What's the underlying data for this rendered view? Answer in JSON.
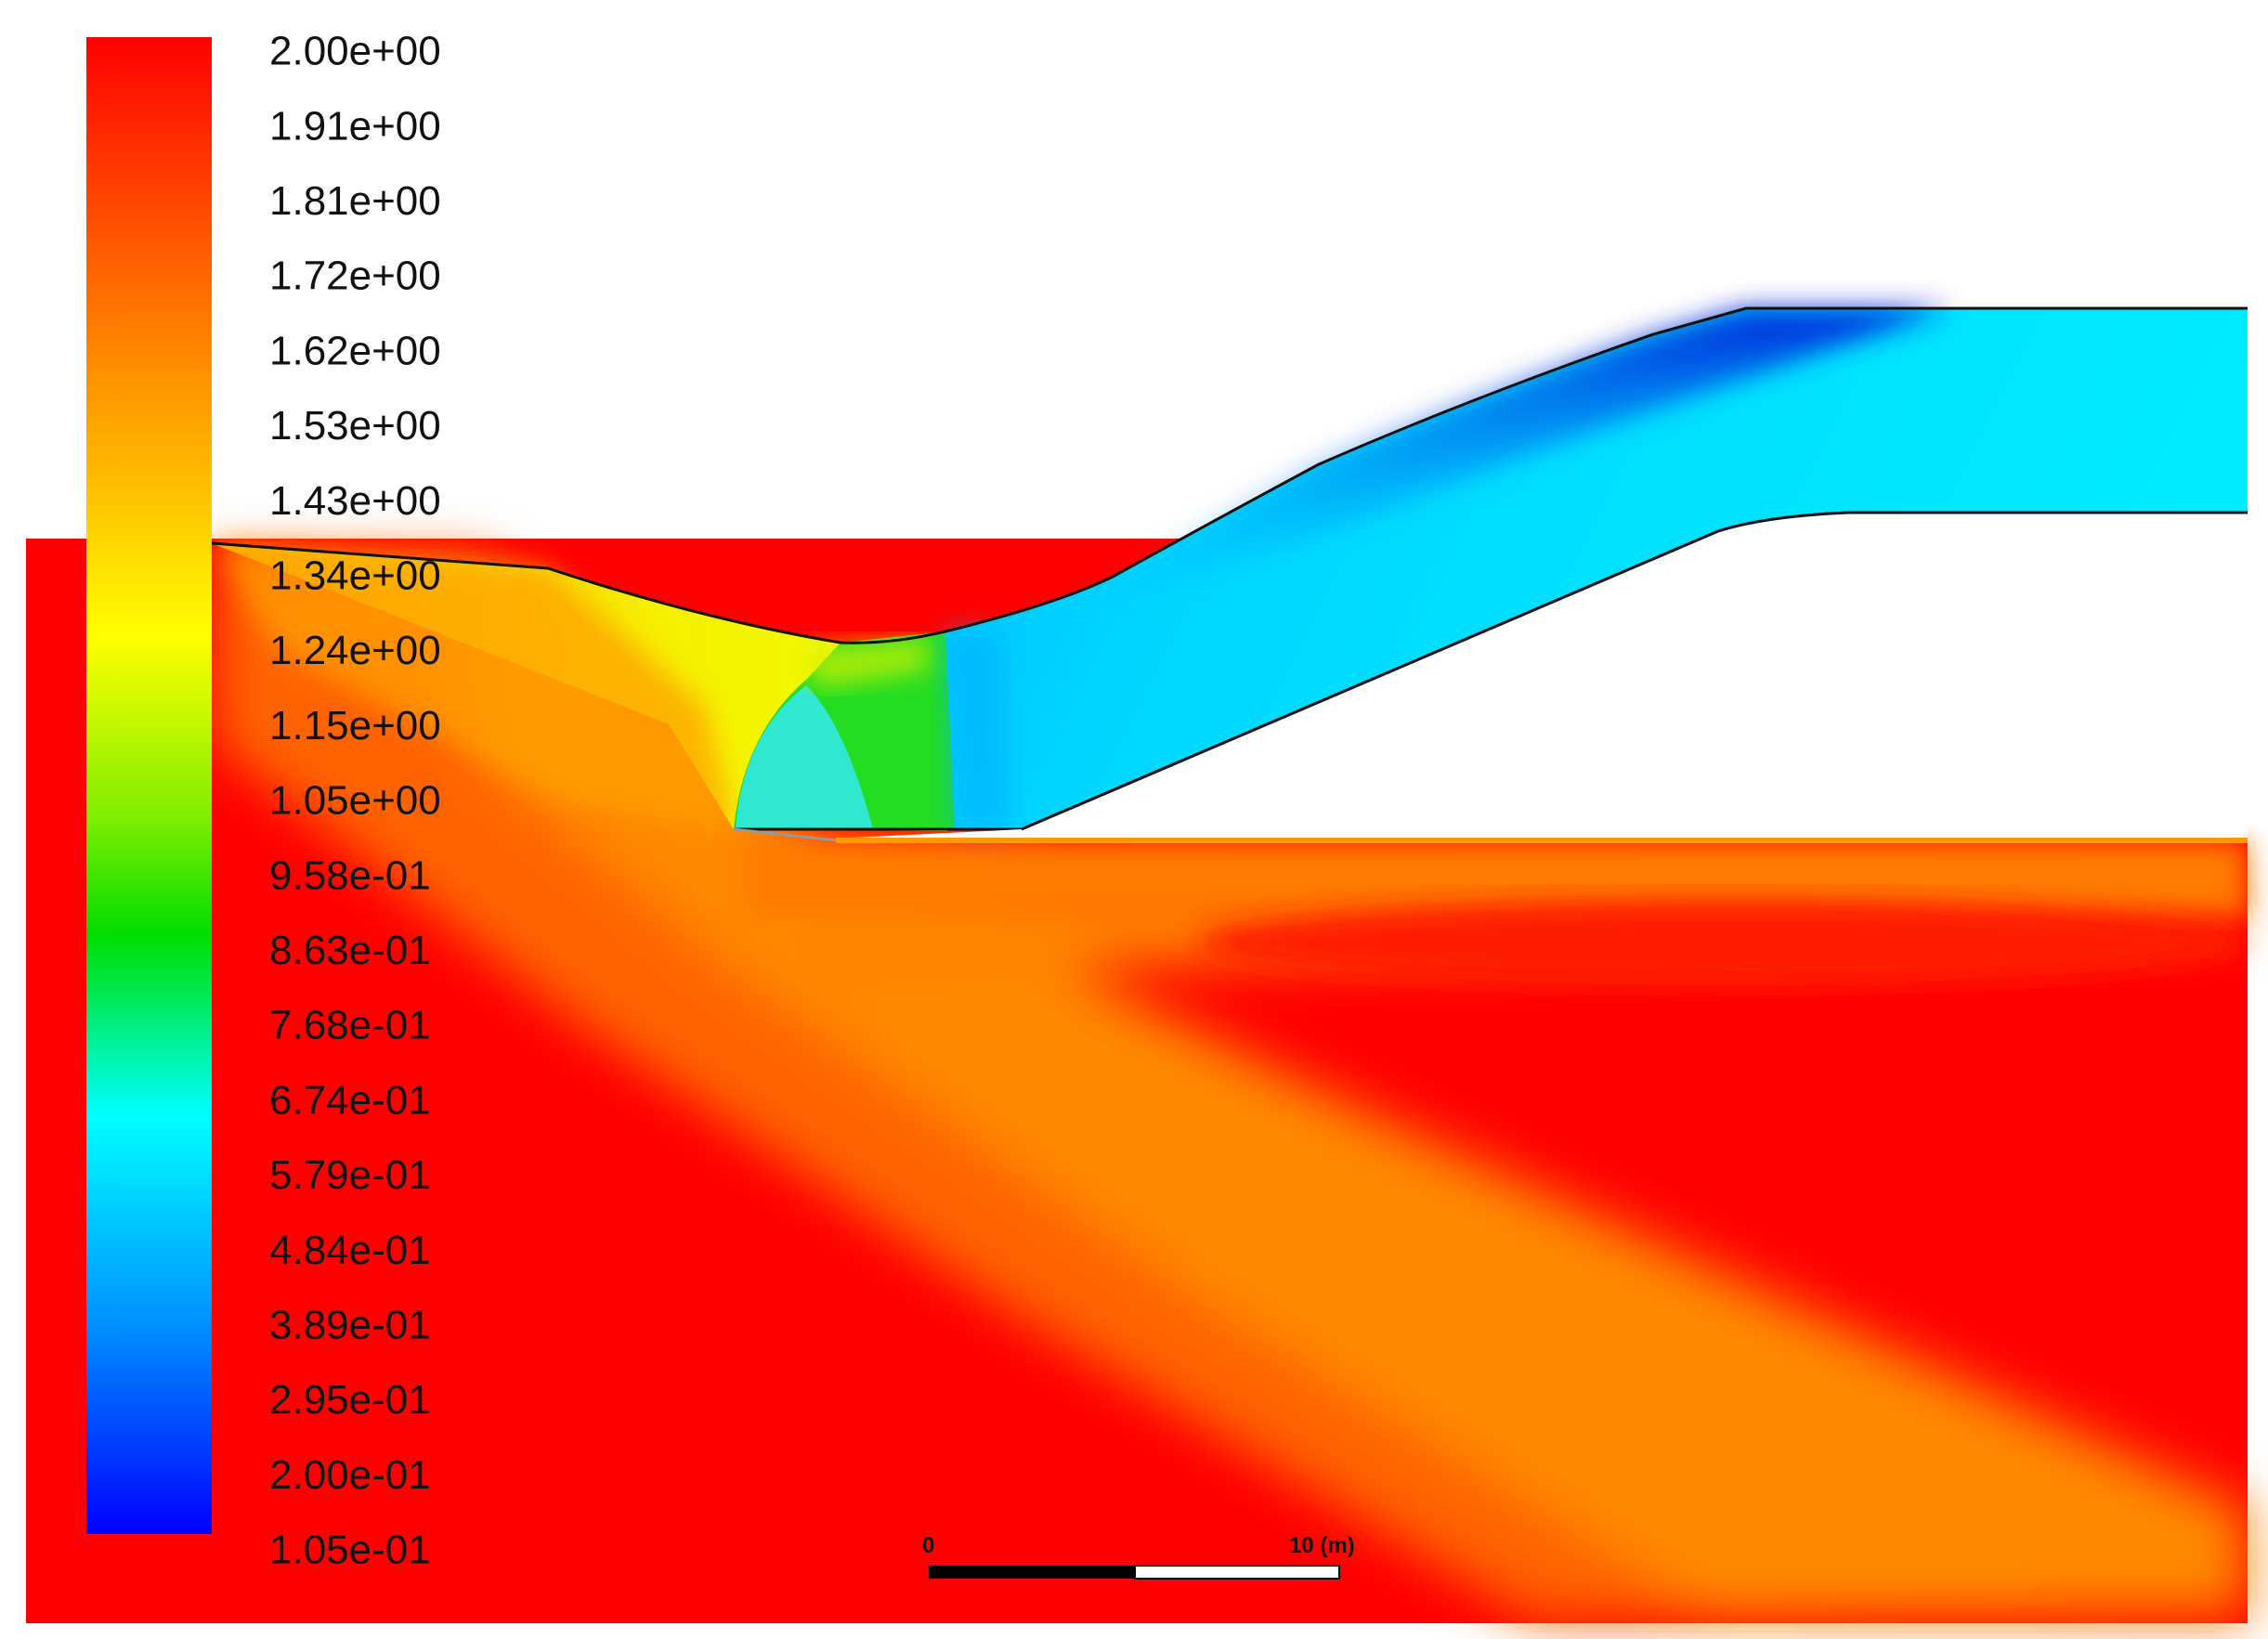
{
  "legend": {
    "labels": [
      "2.00e+00",
      "1.91e+00",
      "1.81e+00",
      "1.72e+00",
      "1.62e+00",
      "1.53e+00",
      "1.43e+00",
      "1.34e+00",
      "1.24e+00",
      "1.15e+00",
      "1.05e+00",
      "9.58e-01",
      "8.63e-01",
      "7.68e-01",
      "6.74e-01",
      "5.79e-01",
      "4.84e-01",
      "3.89e-01",
      "2.95e-01",
      "2.00e-01",
      "1.05e-01"
    ],
    "max": 2.0,
    "min": 0.105,
    "colormap": [
      "#ff0000",
      "#ff8000",
      "#ffff00",
      "#00dd00",
      "#00ffff",
      "#0000ff"
    ]
  },
  "scale_bar": {
    "start_label": "0",
    "end_label": "10 (m)"
  },
  "colors": {
    "reservoir": "#ff0000",
    "jet_orange": "#ff7a00",
    "pipe_cyan": "#00e4ff",
    "pipe_blue": "#0028e0",
    "throat_green": "#22dd22",
    "throat_yellow": "#f6ff00"
  }
}
